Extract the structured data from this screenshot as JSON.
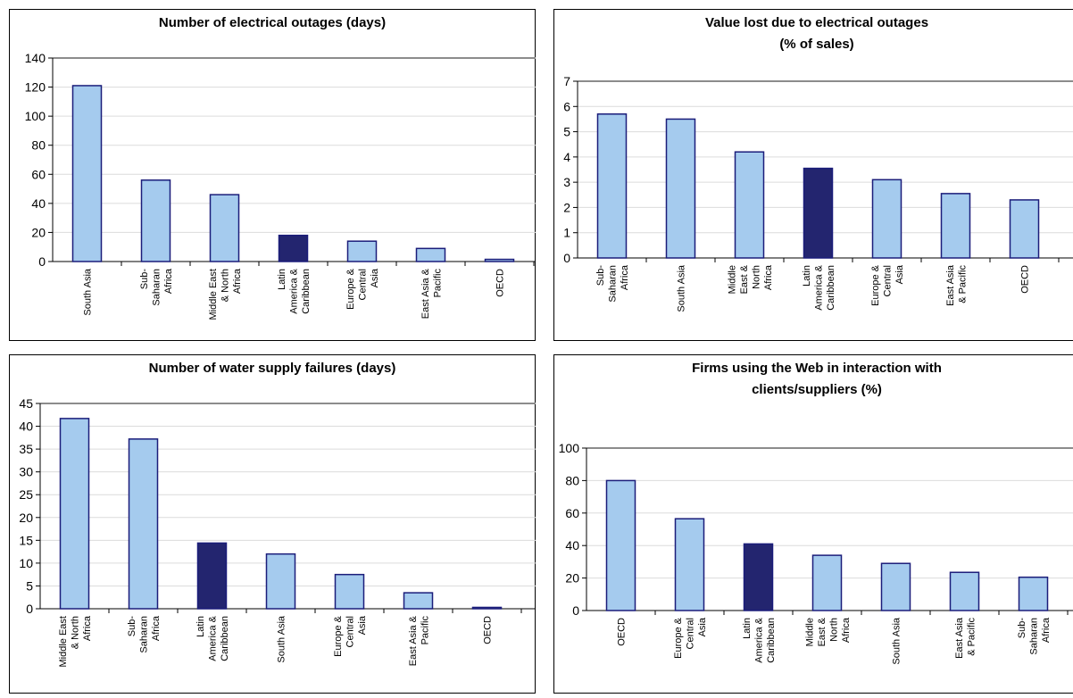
{
  "chart_data": [
    {
      "type": "bar",
      "title": [
        "Number of electrical outages (days)"
      ],
      "categories": [
        [
          "South Asia"
        ],
        [
          "Sub-",
          "Saharan",
          "Africa"
        ],
        [
          "Middle East",
          "& North",
          "Africa"
        ],
        [
          "Latin",
          "America &",
          "Caribbean"
        ],
        [
          "Europe &",
          "Central",
          "Asia"
        ],
        [
          "East Asia &",
          "Pacific"
        ],
        [
          "OECD"
        ]
      ],
      "values": [
        121,
        56,
        46,
        18,
        14,
        9,
        1.5
      ],
      "highlight_index": 3,
      "ylim": [
        0,
        140
      ],
      "yticks": [
        "0",
        "20",
        "40",
        "60",
        "80",
        "100",
        "120",
        "140"
      ],
      "grid": true
    },
    {
      "type": "bar",
      "title": [
        "Value lost due to electrical outages",
        "(% of sales)"
      ],
      "categories": [
        [
          "Sub-",
          "Saharan",
          "Africa"
        ],
        [
          "South Asia"
        ],
        [
          "Middle",
          "East &",
          "North",
          "Africa"
        ],
        [
          "Latin",
          "America &",
          "Caribbean"
        ],
        [
          "Europe &",
          "Central",
          "Asia"
        ],
        [
          "East Asia",
          "& Pacific"
        ],
        [
          "OECD"
        ]
      ],
      "values": [
        5.7,
        5.5,
        4.2,
        3.55,
        3.1,
        2.55,
        2.3
      ],
      "highlight_index": 3,
      "ylim": [
        0,
        7
      ],
      "yticks": [
        "0",
        "1",
        "2",
        "3",
        "4",
        "5",
        "6",
        "7"
      ],
      "grid": true
    },
    {
      "type": "bar",
      "title": [
        "Number of water supply failures (days)"
      ],
      "categories": [
        [
          "Middle East",
          "& North",
          "Africa"
        ],
        [
          "Sub-",
          "Saharan",
          "Africa"
        ],
        [
          "Latin",
          "America &",
          "Caribbean"
        ],
        [
          "South Asia"
        ],
        [
          "Europe &",
          "Central",
          "Asia"
        ],
        [
          "East Asia &",
          "Pacific"
        ],
        [
          "OECD"
        ]
      ],
      "values": [
        41.7,
        37.2,
        14.4,
        12,
        7.5,
        3.5,
        0.3
      ],
      "highlight_index": 2,
      "ylim": [
        0,
        45
      ],
      "yticks": [
        "0",
        "5",
        "10",
        "15",
        "20",
        "25",
        "30",
        "35",
        "40",
        "45"
      ],
      "grid": true
    },
    {
      "type": "bar",
      "title": [
        "Firms using the Web in interaction with",
        "clients/suppliers (%)"
      ],
      "categories": [
        [
          "OECD"
        ],
        [
          "Europe &",
          "Central",
          "Asia"
        ],
        [
          "Latin",
          "America &",
          "Caribbean"
        ],
        [
          "Middle",
          "East &",
          "North",
          "Africa"
        ],
        [
          "South Asia"
        ],
        [
          "East Asia",
          "& Pacific"
        ],
        [
          "Sub-",
          "Saharan",
          "Africa"
        ]
      ],
      "values": [
        80,
        56.5,
        41,
        34,
        29,
        23.5,
        20.5
      ],
      "highlight_index": 2,
      "ylim": [
        0,
        100
      ],
      "yticks": [
        "0",
        "20",
        "40",
        "60",
        "80",
        "100"
      ],
      "grid": true
    }
  ],
  "colors": {
    "bar_fill": "#a5cbee",
    "bar_stroke": "#1b1d7a",
    "highlight_fill": "#23256f",
    "grid": "#dcdcdc",
    "axis": "#000000",
    "plot_border": "#8c8c8c",
    "panel_border": "#000000"
  }
}
